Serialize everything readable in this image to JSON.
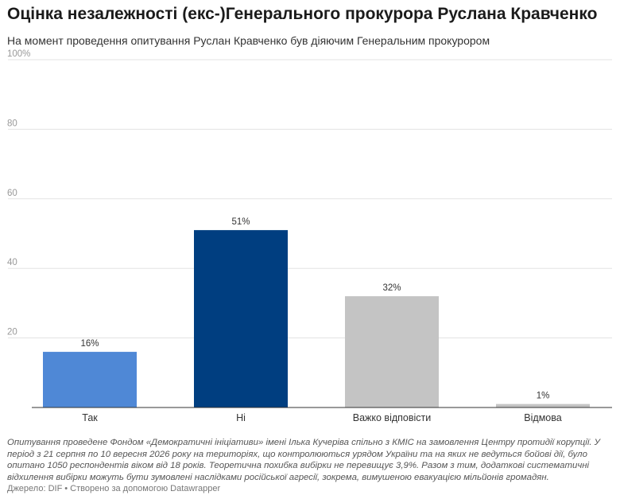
{
  "header": {
    "title": "Оцінка незалежності (екс-)Генерального прокурора Руслана Кравченко",
    "subtitle": "На момент проведення опитування Руслан Кравченко був діяючим Генеральним прокурором"
  },
  "chart_data": {
    "type": "bar",
    "categories": [
      "Так",
      "Ні",
      "Важко відповісти",
      "Відмова"
    ],
    "values": [
      16,
      51,
      32,
      1
    ],
    "data_labels": [
      "16%",
      "51%",
      "32%",
      "1%"
    ],
    "colors": [
      "#4f88d6",
      "#003e80",
      "#c4c4c4",
      "#c4c4c4"
    ],
    "ylim": [
      0,
      100
    ],
    "yticks": [
      0,
      20,
      40,
      60,
      80,
      100
    ],
    "ytick_labels": [
      "",
      "20",
      "40",
      "60",
      "80",
      "100%"
    ],
    "grid": true
  },
  "footer": {
    "notes": "Опитування проведене Фондом «Демократичні ініціативи» імені Ілька Кучеріва спільно з КМІС на замовлення Центру протидії корупції. У період з 21 серпня по 10 вересня 2026 року на територіях, що контролюються урядом України та на яких не ведуться бойові дії, було опитано 1050 респондентів віком від 18 років. Теоретична похибка вибірки не перевищує 3,9%. Разом з тим, додаткові систематичні відхилення вибірки можуть бути зумовлені наслідками російської агресії, зокрема, вимушеною евакуацією мільйонів громадян.",
    "source_label": "Джерело: DIF",
    "separator": "•",
    "credit": "Створено за допомогою Datawrapper"
  }
}
